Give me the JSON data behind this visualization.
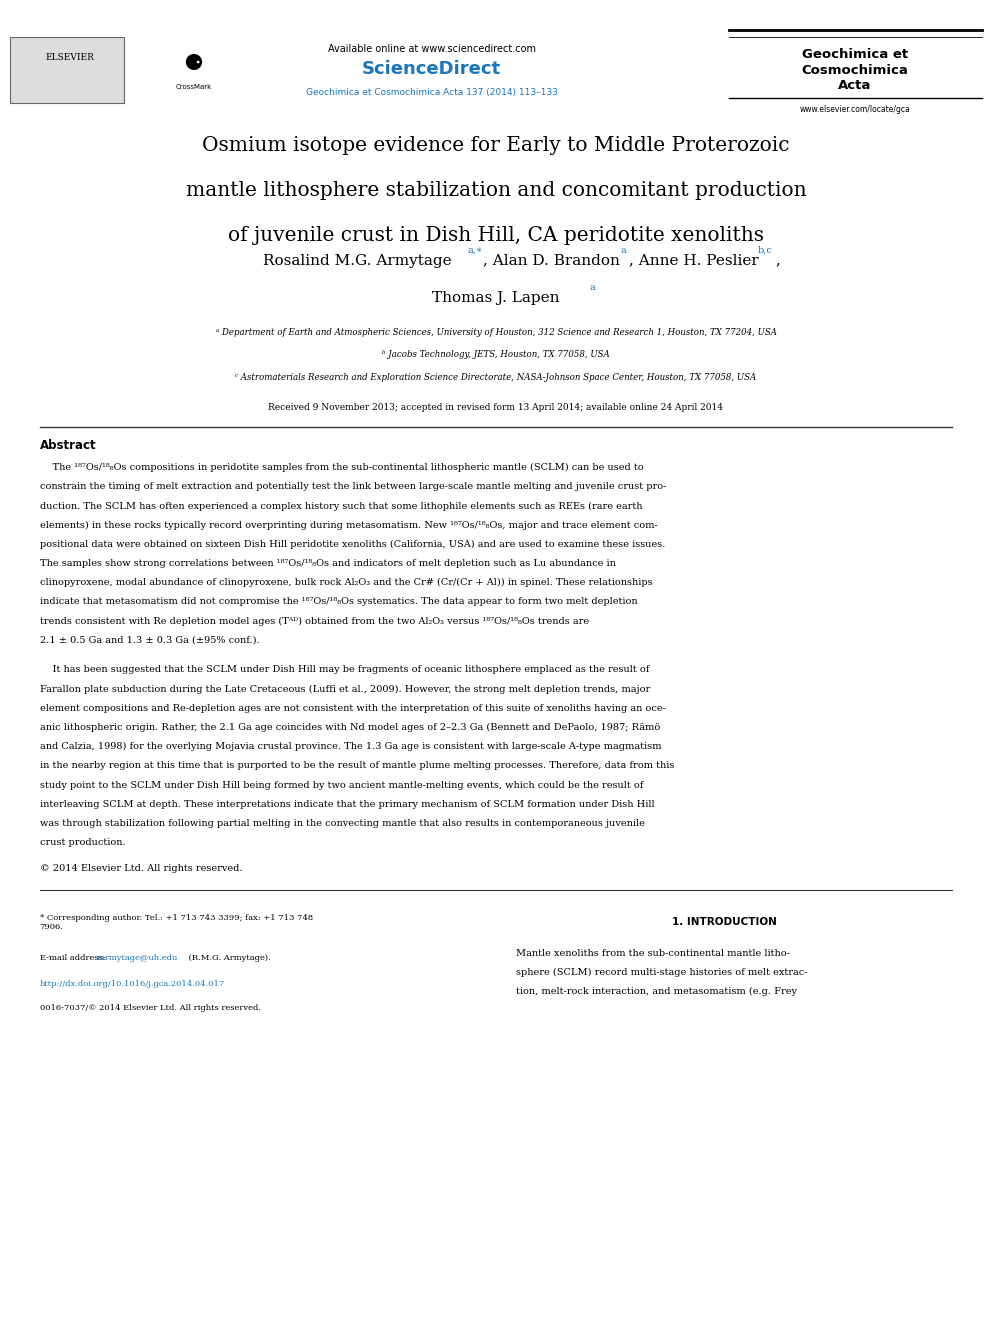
{
  "background_color": "#ffffff",
  "header": {
    "available_online": "Available online at www.sciencedirect.com",
    "sciencedirect": "ScienceDirect",
    "journal_link": "Geochimica et Cosmochimica Acta 137 (2014) 113–133",
    "journal_name_line1": "Geochimica et",
    "journal_name_line2": "Cosmochimica",
    "journal_name_line3": "Acta",
    "website": "www.elsevier.com/locate/gca",
    "elsevier_text": "ELSEVIER"
  },
  "title_lines": [
    "Osmium isotope evidence for Early to Middle Proterozoic",
    "mantle lithosphere stabilization and concomitant production",
    "of juvenile crust in Dish Hill, CA peridotite xenoliths"
  ],
  "affil_a": "ᵃ Department of Earth and Atmospheric Sciences, University of Houston, 312 Science and Research 1, Houston, TX 77204, USA",
  "affil_b": "ᵇ Jacobs Technology, JETS, Houston, TX 77058, USA",
  "affil_c": "ᶜ Astromaterials Research and Exploration Science Directorate, NASA-Johnson Space Center, Houston, TX 77058, USA",
  "received": "Received 9 November 2013; accepted in revised form 13 April 2014; available online 24 April 2014",
  "abstract_title": "Abstract",
  "copyright": "© 2014 Elsevier Ltd. All rights reserved.",
  "section1_title": "1. INTRODUCTION",
  "footnote_star": "* Corresponding author. Tel.: +1 713 743 3399; fax: +1 713 748\n7906.",
  "footnote_email_label": "E-mail address: ",
  "footnote_email": "rarmytage@uh.edu",
  "footnote_email_end": " (R.M.G. Armytage).",
  "footnote_doi": "http://dx.doi.org/10.1016/j.gca.2014.04.017",
  "footnote_issn": "0016-7037/© 2014 Elsevier Ltd. All rights reserved.",
  "link_color": "#1a75bc",
  "text_color": "#000000",
  "sciencedirect_color": "#1a75bc",
  "abs_lines1": [
    "    The ¹⁸⁷Os/¹⁸₈Os compositions in peridotite samples from the sub-continental lithospheric mantle (SCLM) can be used to",
    "constrain the timing of melt extraction and potentially test the link between large-scale mantle melting and juvenile crust pro-",
    "duction. The SCLM has often experienced a complex history such that some lithophile elements such as REEs (rare earth",
    "elements) in these rocks typically record overprinting during metasomatism. New ¹⁸⁷Os/¹⁸₈Os, major and trace element com-",
    "positional data were obtained on sixteen Dish Hill peridotite xenoliths (California, USA) and are used to examine these issues.",
    "The samples show strong correlations between ¹⁸⁷Os/¹⁸₈Os and indicators of melt depletion such as Lu abundance in",
    "clinopyroxene, modal abundance of clinopyroxene, bulk rock Al₂O₃ and the Cr# (Cr/(Cr + Al)) in spinel. These relationships",
    "indicate that metasomatism did not compromise the ¹⁸⁷Os/¹⁸₈Os systematics. The data appear to form two melt depletion",
    "trends consistent with Re depletion model ages (Tᴬᴰ) obtained from the two Al₂O₃ versus ¹⁸⁷Os/¹⁸₈Os trends are",
    "2.1 ± 0.5 Ga and 1.3 ± 0.3 Ga (±95% conf.)."
  ],
  "abs_lines2": [
    "    It has been suggested that the SCLM under Dish Hill may be fragments of oceanic lithosphere emplaced as the result of",
    "Farallon plate subduction during the Late Cretaceous (Luffi et al., 2009). However, the strong melt depletion trends, major",
    "element compositions and Re-depletion ages are not consistent with the interpretation of this suite of xenoliths having an oce-",
    "anic lithospheric origin. Rather, the 2.1 Ga age coincides with Nd model ages of 2–2.3 Ga (Bennett and DePaolo, 1987; Rämö",
    "and Calzia, 1998) for the overlying Mojavia crustal province. The 1.3 Ga age is consistent with large-scale A-type magmatism",
    "in the nearby region at this time that is purported to be the result of mantle plume melting processes. Therefore, data from this",
    "study point to the SCLM under Dish Hill being formed by two ancient mantle-melting events, which could be the result of",
    "interleaving SCLM at depth. These interpretations indicate that the primary mechanism of SCLM formation under Dish Hill",
    "was through stabilization following partial melting in the convecting mantle that also results in contemporaneous juvenile",
    "crust production."
  ],
  "sec1_lines": [
    "Mantle xenoliths from the sub-continental mantle litho-",
    "sphere (SCLM) record multi-stage histories of melt extrac-",
    "tion, melt-rock interaction, and metasomatism (e.g. Frey"
  ]
}
